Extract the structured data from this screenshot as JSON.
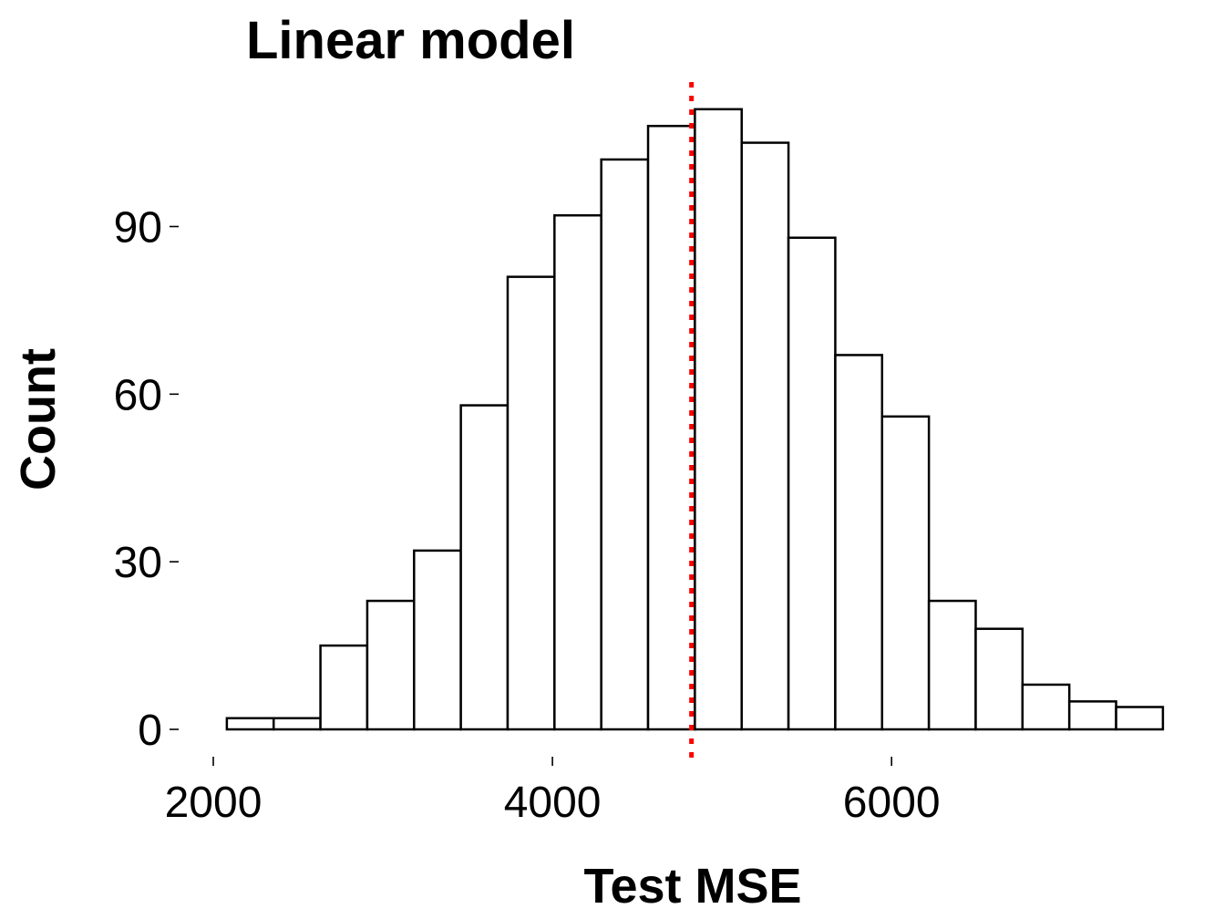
{
  "chart_data": {
    "type": "bar",
    "title": "Linear model",
    "xlabel": "Test MSE",
    "ylabel": "Count",
    "xlim": [
      2000,
      7650
    ],
    "ylim": [
      0,
      111
    ],
    "x_ticks": [
      2000,
      4000,
      6000
    ],
    "y_ticks": [
      0,
      30,
      60,
      90
    ],
    "bins": [
      {
        "x0": 2080,
        "x1": 2356,
        "count": 2
      },
      {
        "x0": 2356,
        "x1": 2632,
        "count": 2
      },
      {
        "x0": 2632,
        "x1": 2908,
        "count": 15
      },
      {
        "x0": 2908,
        "x1": 3184,
        "count": 23
      },
      {
        "x0": 3184,
        "x1": 3460,
        "count": 32
      },
      {
        "x0": 3460,
        "x1": 3736,
        "count": 58
      },
      {
        "x0": 3736,
        "x1": 4012,
        "count": 81
      },
      {
        "x0": 4012,
        "x1": 4288,
        "count": 92
      },
      {
        "x0": 4288,
        "x1": 4564,
        "count": 102
      },
      {
        "x0": 4564,
        "x1": 4840,
        "count": 108
      },
      {
        "x0": 4840,
        "x1": 5116,
        "count": 111
      },
      {
        "x0": 5116,
        "x1": 5392,
        "count": 105
      },
      {
        "x0": 5392,
        "x1": 5668,
        "count": 88
      },
      {
        "x0": 5668,
        "x1": 5944,
        "count": 67
      },
      {
        "x0": 5944,
        "x1": 6220,
        "count": 56
      },
      {
        "x0": 6220,
        "x1": 6496,
        "count": 23
      },
      {
        "x0": 6496,
        "x1": 6772,
        "count": 18
      },
      {
        "x0": 6772,
        "x1": 7048,
        "count": 8
      },
      {
        "x0": 7048,
        "x1": 7324,
        "count": 5
      },
      {
        "x0": 7324,
        "x1": 7600,
        "count": 4
      }
    ],
    "mean_line": {
      "x": 4820,
      "color": "#ff0000",
      "style": "dotted"
    },
    "bar_fill": "#ffffff",
    "bar_stroke": "#000000",
    "grid": false
  }
}
